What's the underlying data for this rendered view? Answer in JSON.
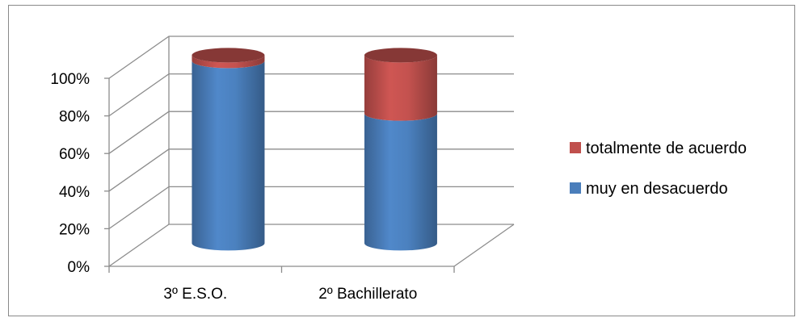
{
  "chart_data": {
    "type": "bar",
    "style": "3d-cylinder-stacked-percent",
    "categories": [
      "3º E.S.O.",
      "2º Bachillerato"
    ],
    "series": [
      {
        "name": "muy en desacuerdo",
        "values": [
          97,
          69
        ],
        "color": "#4a7ebb"
      },
      {
        "name": "totalmente de acuerdo",
        "values": [
          3,
          31
        ],
        "color": "#c0504d"
      }
    ],
    "ylim": [
      0,
      100
    ],
    "y_ticks": [
      "0%",
      "20%",
      "40%",
      "60%",
      "80%",
      "100%"
    ],
    "grid": true,
    "legend_position": "right",
    "legend_order": [
      "totalmente de acuerdo",
      "muy en desacuerdo"
    ]
  }
}
